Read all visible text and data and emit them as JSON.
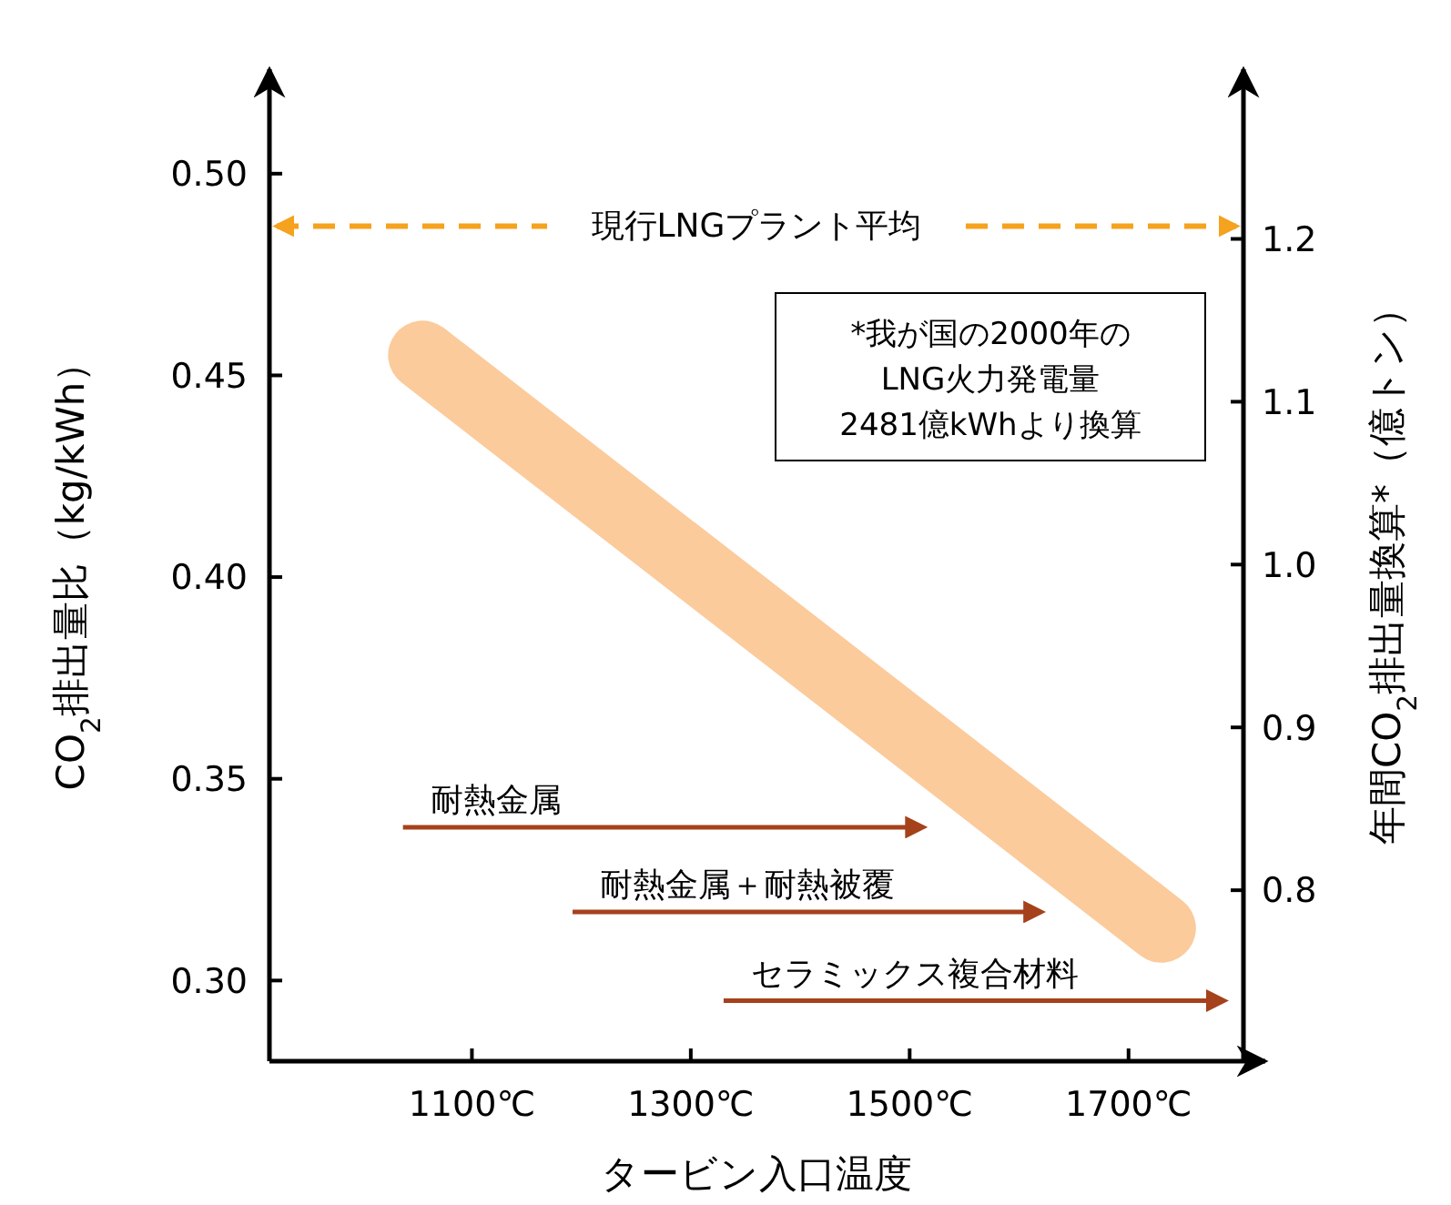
{
  "chart_data": {
    "type": "line",
    "xlabel": "タービン入口温度",
    "ylabel": "CO$_{2}$排出量比（kg/kWh）",
    "y2label": "年間CO$_{2}$排出量換算*（億トン）",
    "xlim": [
      915,
      1805
    ],
    "xticks": [
      {
        "value": 1100,
        "label": "1100℃"
      },
      {
        "value": 1300,
        "label": "1300℃"
      },
      {
        "value": 1500,
        "label": "1500℃"
      },
      {
        "value": 1700,
        "label": "1700℃"
      }
    ],
    "ylim": [
      0.28,
      0.525
    ],
    "yticks": [
      {
        "value": 0.3,
        "label": "0.30"
      },
      {
        "value": 0.35,
        "label": "0.35"
      },
      {
        "value": 0.4,
        "label": "0.40"
      },
      {
        "value": 0.45,
        "label": "0.45"
      },
      {
        "value": 0.5,
        "label": "0.50"
      }
    ],
    "y2lim": [
      0.695,
      1.302
    ],
    "y2ticks": [
      0.8,
      0.9,
      {
        "value": 1.0,
        "label": "1.0"
      },
      1.1,
      1.2
    ],
    "series": [
      {
        "color": "#fbcb9c",
        "x": [
          1055,
          1730
        ],
        "values": [
          0.455,
          0.313
        ]
      },
      {
        "name": "耐熱金属",
        "color": "#a5421b",
        "x": [
          1037,
          1500
        ],
        "values": [
          0.338,
          0.338
        ]
      },
      {
        "name": "耐熱金属＋耐熱被覆",
        "color": "#a5421b",
        "x": [
          1192,
          1608
        ],
        "values": [
          0.317,
          0.317
        ]
      },
      {
        "name": "セラミックス複合材料",
        "color": "#a5421b",
        "x": [
          1330,
          1775
        ],
        "values": [
          0.295,
          0.295
        ]
      }
    ],
    "ref_lines": [
      {
        "axis": "y",
        "value": 0.487,
        "label": "現行LNGプラント平均",
        "color": "#f5a21e",
        "line_style": "dashed"
      }
    ],
    "annotations": [
      "*我が国の2000年の\nLNG火力発電量\n2481億kWhより換算"
    ],
    "marker": "none",
    "line_style": "solid"
  }
}
